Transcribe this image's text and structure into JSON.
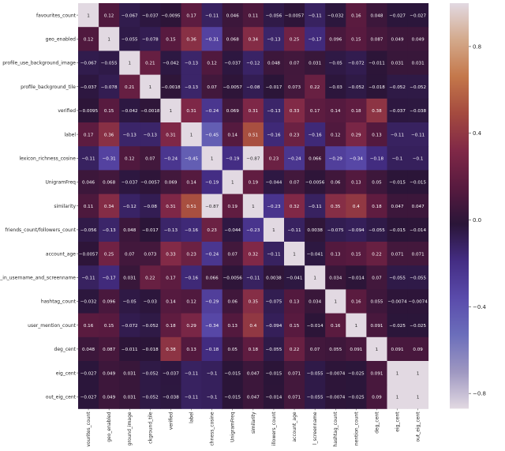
{
  "chart_data": {
    "type": "heatmap",
    "title": "",
    "xlabel": "",
    "ylabel": "",
    "row_labels": [
      "favourites_count",
      "geo_enabled",
      "profile_use_background_image",
      "profile_background_tile",
      "verified",
      "label",
      "lexicon_richness_cosine",
      "UnigramFreq",
      "similarity",
      "friends_count/followers_count",
      "account_age",
      "ity_in_username_and_screenname",
      "hashtag_count",
      "user_mention_count",
      "deg_cent",
      "eig_cent",
      "out_eig_cent"
    ],
    "col_labels": [
      "vourites_count",
      "geo_enabled",
      "ground_image",
      "ckground_tile",
      "verified",
      "label",
      "chness_cosine",
      "UnigramFreq",
      "similarity",
      "illowers_count",
      "account_age",
      "l_screenname",
      "hashtag_count",
      "nention_count",
      "deg_cent",
      "eig_cent",
      "out_eig_cent"
    ],
    "values": [
      [
        1,
        0.12,
        -0.067,
        -0.037,
        -0.0095,
        0.17,
        -0.11,
        0.046,
        0.11,
        -0.056,
        -0.0057,
        -0.11,
        -0.032,
        0.16,
        0.048,
        -0.027,
        -0.027
      ],
      [
        0.12,
        1,
        -0.055,
        -0.078,
        0.15,
        0.36,
        -0.31,
        0.068,
        0.34,
        -0.13,
        0.25,
        -0.17,
        0.096,
        0.15,
        0.087,
        0.049,
        0.049
      ],
      [
        -0.067,
        -0.055,
        1,
        0.21,
        -0.042,
        -0.13,
        0.12,
        -0.037,
        -0.12,
        0.048,
        0.07,
        0.031,
        -0.05,
        -0.072,
        -0.011,
        0.031,
        0.031
      ],
      [
        -0.037,
        -0.078,
        0.21,
        1,
        -0.0018,
        -0.13,
        0.07,
        -0.0057,
        -0.08,
        -0.017,
        0.073,
        0.22,
        -0.03,
        -0.052,
        -0.018,
        -0.052,
        -0.052
      ],
      [
        -0.0095,
        0.15,
        -0.042,
        -0.0018,
        1,
        0.31,
        -0.24,
        0.069,
        0.31,
        -0.13,
        0.33,
        0.17,
        0.14,
        0.18,
        0.38,
        -0.037,
        -0.038
      ],
      [
        0.17,
        0.36,
        -0.13,
        -0.13,
        0.31,
        1,
        -0.45,
        0.14,
        0.51,
        -0.16,
        0.23,
        -0.16,
        0.12,
        0.29,
        0.13,
        -0.11,
        -0.11
      ],
      [
        -0.11,
        -0.31,
        0.12,
        0.07,
        -0.24,
        -0.45,
        1,
        -0.19,
        -0.87,
        0.23,
        -0.24,
        0.066,
        -0.29,
        -0.34,
        -0.18,
        -0.1,
        -0.1
      ],
      [
        0.046,
        0.068,
        -0.037,
        -0.0057,
        0.069,
        0.14,
        -0.19,
        1,
        0.19,
        -0.044,
        0.07,
        -0.0056,
        0.06,
        0.13,
        0.05,
        -0.015,
        -0.015
      ],
      [
        0.11,
        0.34,
        -0.12,
        -0.08,
        0.31,
        0.51,
        -0.87,
        0.19,
        1,
        -0.23,
        0.32,
        -0.11,
        0.35,
        0.4,
        0.18,
        0.047,
        0.047
      ],
      [
        -0.056,
        -0.13,
        0.048,
        -0.017,
        -0.13,
        -0.16,
        0.23,
        -0.044,
        -0.23,
        1,
        -0.11,
        0.0038,
        -0.075,
        -0.094,
        -0.055,
        -0.015,
        -0.014
      ],
      [
        -0.0057,
        0.25,
        0.07,
        0.073,
        0.33,
        0.23,
        -0.24,
        0.07,
        0.32,
        -0.11,
        1,
        -0.041,
        0.13,
        0.15,
        0.22,
        0.071,
        0.071
      ],
      [
        -0.11,
        -0.17,
        0.031,
        0.22,
        0.17,
        -0.16,
        0.066,
        -0.0056,
        -0.11,
        0.0038,
        -0.041,
        1,
        0.034,
        -0.014,
        0.07,
        -0.055,
        -0.055
      ],
      [
        -0.032,
        0.096,
        -0.05,
        -0.03,
        0.14,
        0.12,
        -0.29,
        0.06,
        0.35,
        -0.075,
        0.13,
        0.034,
        1,
        0.16,
        0.055,
        -0.0074,
        -0.0074
      ],
      [
        0.16,
        0.15,
        -0.072,
        -0.052,
        0.18,
        0.29,
        -0.34,
        0.13,
        0.4,
        -0.094,
        0.15,
        -0.014,
        0.16,
        1,
        0.091,
        -0.025,
        -0.025
      ],
      [
        0.048,
        0.087,
        -0.011,
        -0.018,
        0.38,
        0.13,
        -0.18,
        0.05,
        0.18,
        -0.055,
        0.22,
        0.07,
        0.055,
        0.091,
        1,
        0.091,
        0.09
      ],
      [
        -0.027,
        0.049,
        0.031,
        -0.052,
        -0.037,
        -0.11,
        -0.1,
        -0.015,
        0.047,
        -0.015,
        0.071,
        -0.055,
        -0.0074,
        -0.025,
        0.091,
        1,
        1
      ],
      [
        -0.027,
        0.049,
        0.031,
        -0.052,
        -0.038,
        -0.11,
        -0.1,
        -0.015,
        0.047,
        -0.014,
        0.071,
        -0.055,
        -0.0074,
        -0.025,
        0.09,
        1,
        1
      ]
    ],
    "colorbar": {
      "range": [
        -0.87,
        1
      ],
      "ticks": [
        0.8,
        0.4,
        0.0,
        -0.4,
        -0.8
      ],
      "tick_labels": [
        "0.8",
        "0.4",
        "0.0",
        "−0.4",
        "−0.8"
      ],
      "colormap": "twilight_shifted",
      "colors": [
        "#e2d9e2",
        "#9e97c1",
        "#6b6ebb",
        "#5a4bab",
        "#442d84",
        "#2a1538",
        "#581a3f",
        "#802847",
        "#a44a3f",
        "#c4774a",
        "#d3a98b",
        "#e2d9e2"
      ]
    },
    "legend": "colorbar-right",
    "grid": false
  }
}
